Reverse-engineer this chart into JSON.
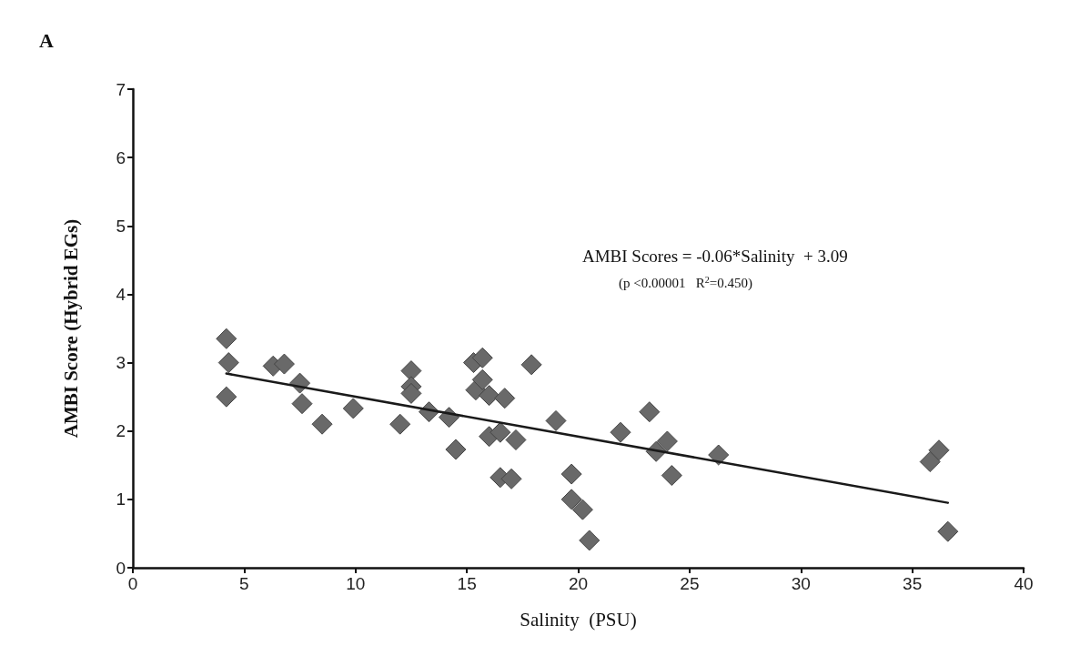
{
  "chart_data": {
    "type": "scatter",
    "title": "A",
    "xlabel": "Salinity  (PSU)",
    "ylabel": "AMBI Score (Hybrid EGs)",
    "annotations": [
      "AMBI Scores = -0.06*Salinity  + 3.09",
      "(p <0.00001   R$^{2}$=0.450)"
    ],
    "xlim": [
      0,
      40
    ],
    "xticks": [
      0,
      5,
      10,
      15,
      20,
      25,
      30,
      35,
      40
    ],
    "ylim": [
      0,
      7
    ],
    "yticks": [
      0,
      1,
      2,
      3,
      4,
      5,
      6,
      7
    ],
    "grid": false,
    "marker": "diamond",
    "series": [
      {
        "color": "#696969",
        "x": [
          4.2,
          4.3,
          4.2,
          6.3,
          6.8,
          7.5,
          7.6,
          8.5,
          9.9,
          12.0,
          12.5,
          12.5,
          12.5,
          13.3,
          14.2,
          14.5,
          15.3,
          15.4,
          15.7,
          15.7,
          16.0,
          16.0,
          16.5,
          16.5,
          16.7,
          17.0,
          17.2,
          17.9,
          19.0,
          19.7,
          19.7,
          20.2,
          20.5,
          21.9,
          23.2,
          23.5,
          24.0,
          24.2,
          26.3,
          35.8,
          36.2,
          36.6
        ],
        "values": [
          3.35,
          3.0,
          2.5,
          2.95,
          2.98,
          2.7,
          2.4,
          2.1,
          2.33,
          2.1,
          2.88,
          2.65,
          2.55,
          2.28,
          2.2,
          1.73,
          3.0,
          2.6,
          3.07,
          2.75,
          2.52,
          1.92,
          1.32,
          1.98,
          2.48,
          1.3,
          1.87,
          2.97,
          2.15,
          1.37,
          1.0,
          0.85,
          0.4,
          1.98,
          2.28,
          1.7,
          1.85,
          1.35,
          1.65,
          1.55,
          1.72,
          0.53
        ]
      },
      {
        "type": "line",
        "color": "#1a1a1a",
        "marker": "none",
        "line_style": "solid",
        "x": [
          4.2,
          36.6
        ],
        "values": [
          2.84,
          0.95
        ]
      }
    ]
  }
}
